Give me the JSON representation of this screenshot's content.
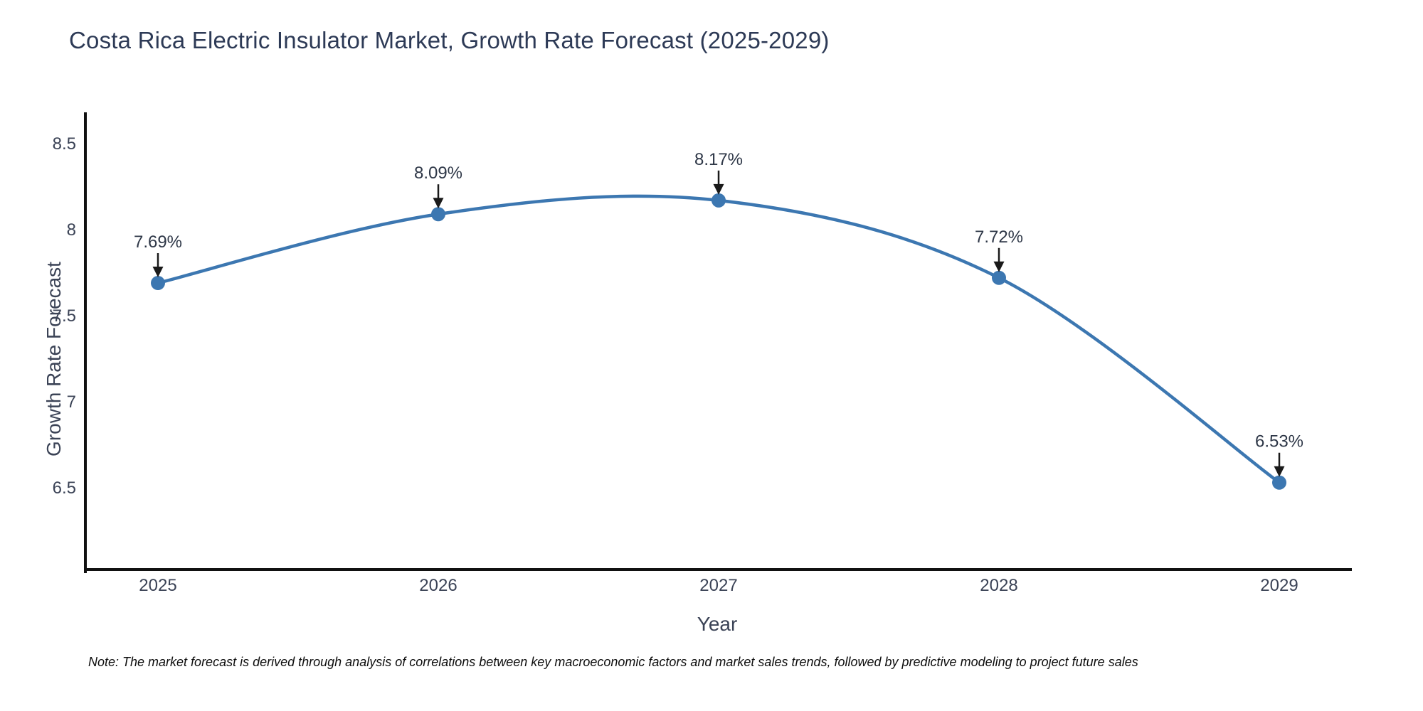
{
  "title": "Costa Rica Electric Insulator Market, Growth Rate Forecast (2025-2029)",
  "note": "Note: The market forecast is derived through analysis of correlations between key macroeconomic factors and market sales trends, followed by predictive modeling to project future sales",
  "chart_data": {
    "type": "line",
    "line_shape": "spline",
    "title": "Costa Rica Electric Insulator Market, Growth Rate Forecast (2025-2029)",
    "xlabel": "Year",
    "ylabel": "Growth Rate Forecast",
    "x": [
      2025,
      2026,
      2027,
      2028,
      2029
    ],
    "values": [
      7.69,
      8.09,
      8.17,
      7.72,
      6.53
    ],
    "point_labels": [
      "7.69%",
      "8.09%",
      "8.17%",
      "7.72%",
      "6.53%"
    ],
    "xtick_labels": [
      "2025",
      "2026",
      "2027",
      "2028",
      "2029"
    ],
    "ytick_values": [
      8.5,
      8.0,
      7.5,
      7.0,
      6.5
    ],
    "ytick_labels": [
      "8.5",
      "8",
      "7.5",
      "7",
      "6.5"
    ],
    "ylim": [
      5.86,
      8.67
    ],
    "grid": false,
    "legend": "none",
    "colors": {
      "line": "#3c77b1",
      "marker": "#3c77b1",
      "axis_line": "#111111",
      "tick_text": "#3b4356",
      "annotation_text": "#2e3747",
      "arrow": "#1a1a1a",
      "background": "#ffffff"
    }
  }
}
